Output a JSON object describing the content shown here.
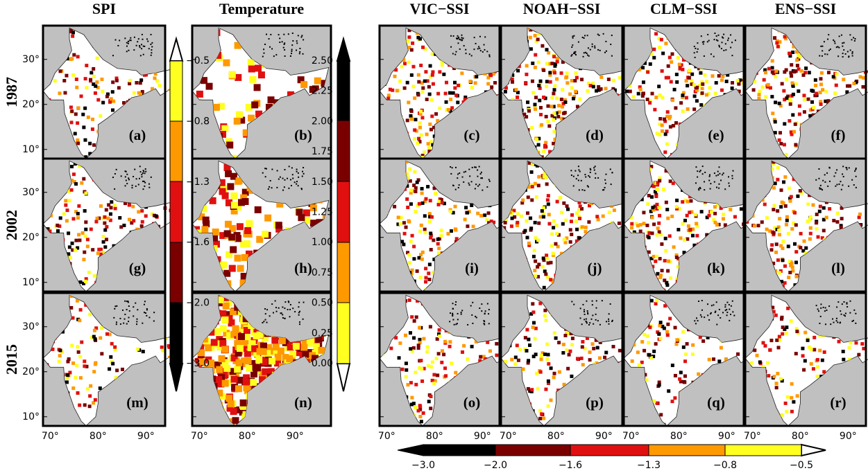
{
  "columns": [
    "SPI",
    "Temperature",
    "VIC−SSI",
    "NOAH−SSI",
    "CLM−SSI",
    "ENS−SSI"
  ],
  "rows": [
    "1987",
    "2002",
    "2015"
  ],
  "panels": [
    [
      "(a)",
      "(b)",
      "(c)",
      "(d)",
      "(e)",
      "(f)"
    ],
    [
      "(g)",
      "(h)",
      "(i)",
      "(j)",
      "(k)",
      "(l)"
    ],
    [
      "(m)",
      "(n)",
      "(o)",
      "(p)",
      "(q)",
      "(r)"
    ]
  ],
  "lat_labels": [
    "30°",
    "20°",
    "10°"
  ],
  "lon_labels": [
    "70°",
    "80°",
    "90°"
  ],
  "spi_colorbar": {
    "ticks": [
      "−0.5",
      "−0.8",
      "−1.3",
      "−1.6",
      "−2.0",
      "−3.0"
    ]
  },
  "temperature_colorbar": {
    "ticks": [
      "2.50",
      "2.25",
      "2.00",
      "1.75",
      "1.50",
      "1.25",
      "1.00",
      "0.75",
      "0.50",
      "0.25",
      "0.00"
    ]
  },
  "ssi_colorbar": {
    "ticks": [
      "−3.0",
      "−2.0",
      "−1.6",
      "−1.3",
      "−0.8",
      "−0.5"
    ]
  }
}
